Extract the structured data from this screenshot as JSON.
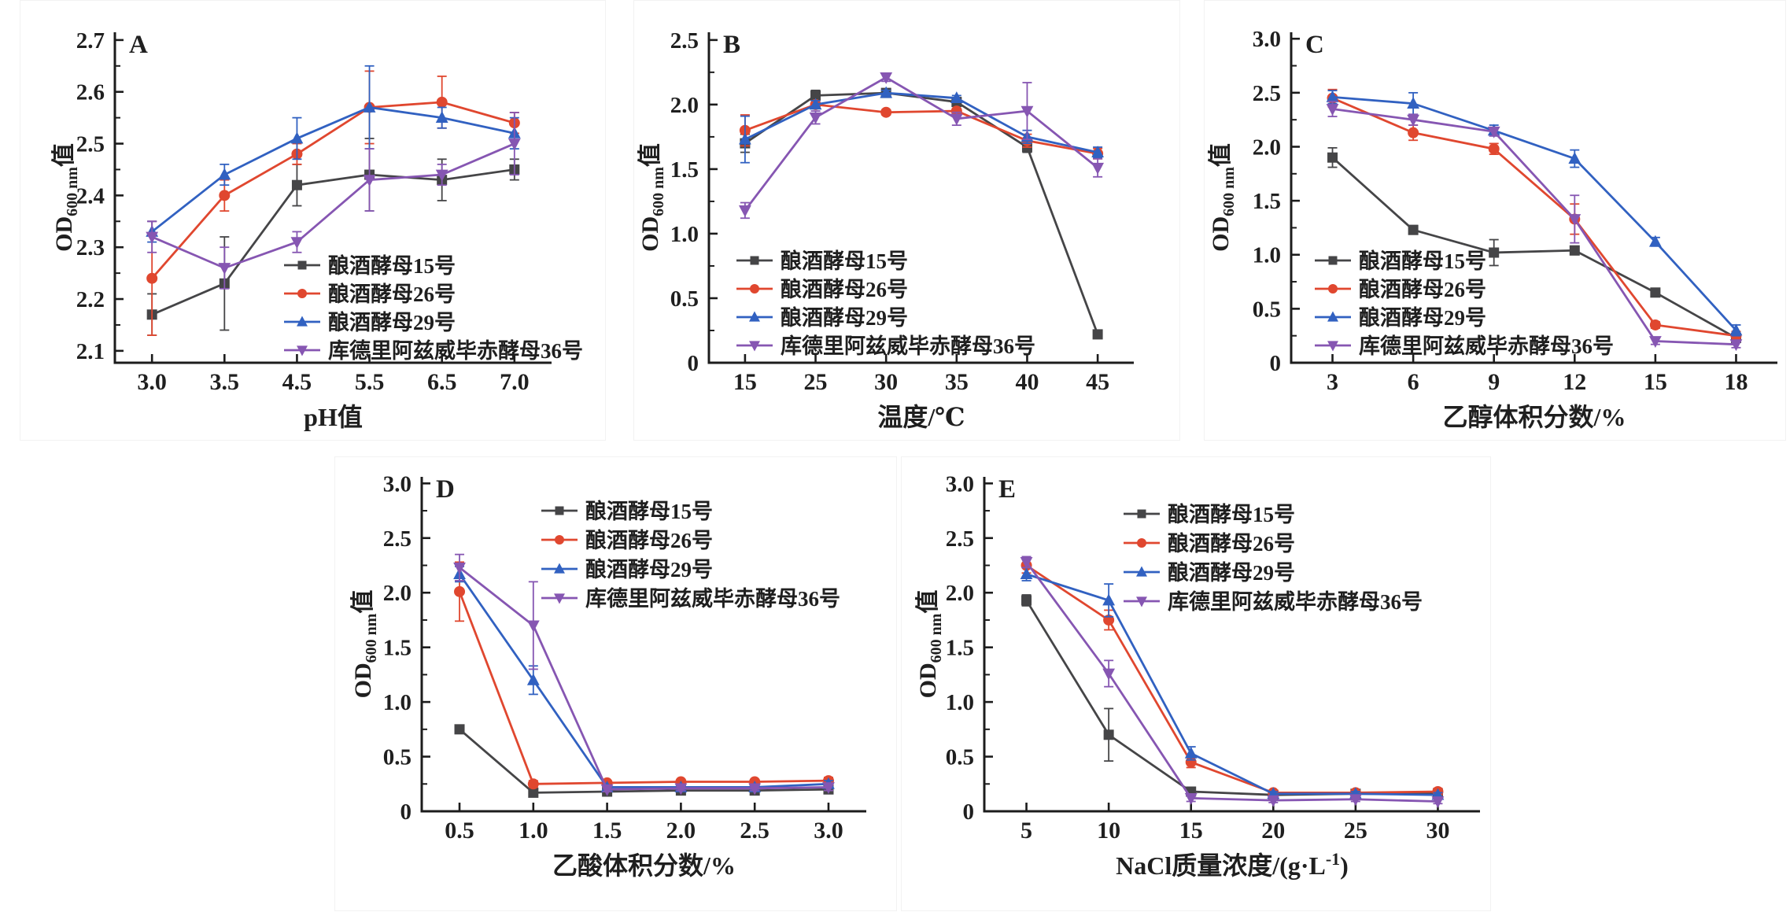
{
  "figure": {
    "background": "#ffffff",
    "axis_color": "#1c1c1c",
    "panel_labels": [
      "A",
      "B",
      "C",
      "D",
      "E"
    ],
    "legend_labels": [
      "酿酒酵母15号",
      "酿酒酵母26号",
      "酿酒酵母29号",
      "库德里阿兹威毕赤酵母36号"
    ],
    "series_colors": {
      "strain15": "#454547",
      "strain26": "#e0472f",
      "strain29": "#3161c1",
      "strain36": "#8656b2"
    },
    "y_axis_title_rich": {
      "pre": "OD",
      "sub": "600 nm",
      "post": "值"
    }
  },
  "chart_data": [
    {
      "id": "A",
      "type": "line",
      "panel_label": "A",
      "xlabel": "pH值",
      "ylabel": "OD600 nm值",
      "ylabel_rich": {
        "pre": "OD",
        "sub": "600 nm",
        "post": "值"
      },
      "categories": [
        "3.0",
        "3.5",
        "4.5",
        "5.5",
        "6.5",
        "7.0"
      ],
      "ylim": [
        2.077,
        2.715
      ],
      "yticks": [
        "2.1",
        "2.2",
        "2.3",
        "2.4",
        "2.5",
        "2.6",
        "2.7"
      ],
      "grid": false,
      "legend_position": "inside-bottom-center",
      "series": [
        {
          "name": "酿酒酵母15号",
          "color": "#454547",
          "marker": "square",
          "values": [
            2.17,
            2.23,
            2.42,
            2.44,
            2.43,
            2.45
          ],
          "errors": [
            0.04,
            0.09,
            0.04,
            0.07,
            0.04,
            0.02
          ]
        },
        {
          "name": "酿酒酵母26号",
          "color": "#e0472f",
          "marker": "circle",
          "values": [
            2.24,
            2.4,
            2.48,
            2.57,
            2.58,
            2.54
          ],
          "errors": [
            0.11,
            0.03,
            0.02,
            0.07,
            0.05,
            0.02
          ]
        },
        {
          "name": "酿酒酵母29号",
          "color": "#3161c1",
          "marker": "triangle-up",
          "values": [
            2.33,
            2.44,
            2.51,
            2.57,
            2.55,
            2.52
          ],
          "errors": [
            0.02,
            0.02,
            0.04,
            0.08,
            0.02,
            0.03
          ]
        },
        {
          "name": "库德里阿兹威毕赤酵母36号",
          "color": "#8656b2",
          "marker": "triangle-down",
          "values": [
            2.32,
            2.26,
            2.31,
            2.43,
            2.44,
            2.5
          ],
          "errors": [
            0.03,
            0.04,
            0.02,
            0.06,
            0.02,
            0.06
          ]
        }
      ]
    },
    {
      "id": "B",
      "type": "line",
      "panel_label": "B",
      "xlabel": "温度/℃",
      "ylabel": "OD600 nm值",
      "ylabel_rich": {
        "pre": "OD",
        "sub": "600 nm",
        "post": "值"
      },
      "categories": [
        "15",
        "25",
        "30",
        "35",
        "40",
        "45"
      ],
      "ylim": [
        0,
        2.56
      ],
      "yticks": [
        "0",
        "0.5",
        "1.0",
        "1.5",
        "2.0",
        "2.5"
      ],
      "grid": false,
      "legend_position": "inside-bottom-left",
      "series": [
        {
          "name": "酿酒酵母15号",
          "color": "#454547",
          "marker": "square",
          "values": [
            1.7,
            2.07,
            2.09,
            2.02,
            1.67,
            0.22
          ],
          "errors": [
            0.07,
            0.04,
            0.02,
            0.03,
            0.04,
            0.02
          ]
        },
        {
          "name": "酿酒酵母26号",
          "color": "#e0472f",
          "marker": "circle",
          "values": [
            1.8,
            2.0,
            1.94,
            1.95,
            1.72,
            1.62
          ],
          "errors": [
            0.12,
            0.03,
            0.02,
            0.02,
            0.05,
            0.04
          ]
        },
        {
          "name": "酿酒酵母29号",
          "color": "#3161c1",
          "marker": "triangle-up",
          "values": [
            1.73,
            2.0,
            2.09,
            2.05,
            1.75,
            1.63
          ],
          "errors": [
            0.18,
            0.03,
            0.02,
            0.02,
            0.05,
            0.04
          ]
        },
        {
          "name": "库德里阿兹威毕赤酵母36号",
          "color": "#8656b2",
          "marker": "triangle-down",
          "values": [
            1.18,
            1.9,
            2.21,
            1.89,
            1.95,
            1.51
          ],
          "errors": [
            0.06,
            0.05,
            0.03,
            0.05,
            0.22,
            0.07
          ]
        }
      ]
    },
    {
      "id": "C",
      "type": "line",
      "panel_label": "C",
      "xlabel": "乙醇体积分数/%",
      "ylabel": "OD600 nm值",
      "ylabel_rich": {
        "pre": "OD",
        "sub": "600 nm",
        "post": "值"
      },
      "categories": [
        "3",
        "6",
        "9",
        "12",
        "15",
        "18"
      ],
      "ylim": [
        0,
        3.06
      ],
      "yticks": [
        "0",
        "0.5",
        "1.0",
        "1.5",
        "2.0",
        "2.5",
        "3.0"
      ],
      "grid": false,
      "legend_position": "inside-bottom-left",
      "series": [
        {
          "name": "酿酒酵母15号",
          "color": "#454547",
          "marker": "square",
          "values": [
            1.9,
            1.23,
            1.02,
            1.04,
            0.65,
            0.23
          ],
          "errors": [
            0.09,
            0.04,
            0.12,
            0.04,
            0.03,
            0.04
          ]
        },
        {
          "name": "酿酒酵母26号",
          "color": "#e0472f",
          "marker": "circle",
          "values": [
            2.45,
            2.13,
            1.98,
            1.33,
            0.35,
            0.25
          ],
          "errors": [
            0.08,
            0.07,
            0.05,
            0.14,
            0.03,
            0.04
          ]
        },
        {
          "name": "酿酒酵母29号",
          "color": "#3161c1",
          "marker": "triangle-up",
          "values": [
            2.46,
            2.4,
            2.15,
            1.89,
            1.12,
            0.3
          ],
          "errors": [
            0.06,
            0.1,
            0.05,
            0.08,
            0.04,
            0.05
          ]
        },
        {
          "name": "库德里阿兹威毕赤酵母36号",
          "color": "#8656b2",
          "marker": "triangle-down",
          "values": [
            2.35,
            2.25,
            2.14,
            1.33,
            0.2,
            0.17
          ],
          "errors": [
            0.07,
            0.05,
            0.04,
            0.22,
            0.03,
            0.03
          ]
        }
      ]
    },
    {
      "id": "D",
      "type": "line",
      "panel_label": "D",
      "xlabel": "乙酸体积分数/%",
      "ylabel": "OD600 nm值",
      "ylabel_rich": {
        "pre": "OD",
        "sub": "600 nm",
        "post": "值"
      },
      "categories": [
        "0.5",
        "1.0",
        "1.5",
        "2.0",
        "2.5",
        "3.0"
      ],
      "ylim": [
        0,
        3.06
      ],
      "yticks": [
        "0",
        "0.5",
        "1.0",
        "1.5",
        "2.0",
        "2.5",
        "3.0"
      ],
      "grid": false,
      "legend_position": "inside-top-right",
      "series": [
        {
          "name": "酿酒酵母15号",
          "color": "#454547",
          "marker": "square",
          "values": [
            0.75,
            0.17,
            0.18,
            0.19,
            0.19,
            0.2
          ],
          "errors": [
            0.03,
            0.02,
            0.02,
            0.02,
            0.02,
            0.02
          ]
        },
        {
          "name": "酿酒酵母26号",
          "color": "#e0472f",
          "marker": "circle",
          "values": [
            2.01,
            0.25,
            0.26,
            0.27,
            0.27,
            0.28
          ],
          "errors": [
            0.27,
            0.03,
            0.02,
            0.02,
            0.02,
            0.03
          ]
        },
        {
          "name": "酿酒酵母29号",
          "color": "#3161c1",
          "marker": "triangle-up",
          "values": [
            2.17,
            1.2,
            0.22,
            0.22,
            0.22,
            0.25
          ],
          "errors": [
            0.07,
            0.13,
            0.02,
            0.02,
            0.02,
            0.03
          ]
        },
        {
          "name": "库德里阿兹威毕赤酵母36号",
          "color": "#8656b2",
          "marker": "triangle-down",
          "values": [
            2.23,
            1.7,
            0.2,
            0.21,
            0.21,
            0.22
          ],
          "errors": [
            0.12,
            0.4,
            0.02,
            0.02,
            0.02,
            0.03
          ]
        }
      ]
    },
    {
      "id": "E",
      "type": "line",
      "panel_label": "E",
      "xlabel": "NaCl质量浓度/(g·L⁻¹)",
      "xlabel_rich": {
        "pre": "NaCl质量浓度/(g·L",
        "sup": "-1",
        "post": ")"
      },
      "ylabel": "OD600 nm值",
      "ylabel_rich": {
        "pre": "OD",
        "sub": "600 nm",
        "post": "值"
      },
      "categories": [
        "5",
        "10",
        "15",
        "20",
        "25",
        "30"
      ],
      "ylim": [
        0,
        3.06
      ],
      "yticks": [
        "0",
        "0.5",
        "1.0",
        "1.5",
        "2.0",
        "2.5",
        "3.0"
      ],
      "grid": false,
      "legend_position": "inside-top-right",
      "series": [
        {
          "name": "酿酒酵母15号",
          "color": "#454547",
          "marker": "square",
          "values": [
            1.93,
            0.7,
            0.18,
            0.15,
            0.16,
            0.16
          ],
          "errors": [
            0.05,
            0.24,
            0.03,
            0.02,
            0.02,
            0.02
          ]
        },
        {
          "name": "酿酒酵母26号",
          "color": "#e0472f",
          "marker": "circle",
          "values": [
            2.25,
            1.75,
            0.45,
            0.17,
            0.17,
            0.18
          ],
          "errors": [
            0.07,
            0.09,
            0.05,
            0.02,
            0.02,
            0.03
          ]
        },
        {
          "name": "酿酒酵母29号",
          "color": "#3161c1",
          "marker": "triangle-up",
          "values": [
            2.17,
            1.93,
            0.53,
            0.16,
            0.16,
            0.15
          ],
          "errors": [
            0.06,
            0.15,
            0.06,
            0.02,
            0.02,
            0.02
          ]
        },
        {
          "name": "库德里阿兹威毕赤酵母36号",
          "color": "#8656b2",
          "marker": "triangle-down",
          "values": [
            2.28,
            1.26,
            0.12,
            0.1,
            0.11,
            0.09
          ],
          "errors": [
            0.05,
            0.12,
            0.03,
            0.02,
            0.02,
            0.02
          ]
        }
      ]
    }
  ]
}
